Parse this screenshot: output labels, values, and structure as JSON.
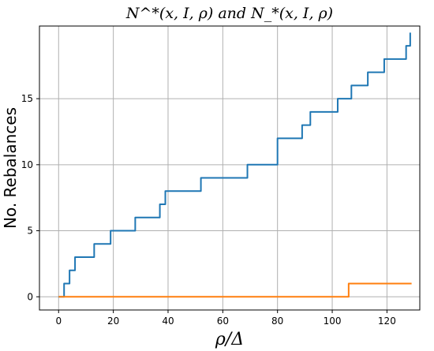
{
  "chart_data": {
    "type": "line",
    "title": "N^*(x, I, ρ) and N_*(x, I, ρ)",
    "xlabel": "ρ/Δ",
    "ylabel": "No. Rebalances",
    "xlim": [
      -7,
      132
    ],
    "ylim": [
      -1,
      20.5
    ],
    "xticks": [
      0,
      20,
      40,
      60,
      80,
      100,
      120
    ],
    "yticks": [
      0,
      5,
      10,
      15
    ],
    "grid": true,
    "series": [
      {
        "color": "#1f77b4",
        "step": true,
        "x": [
          0,
          2,
          2.5,
          4,
          6,
          8,
          13,
          19,
          28,
          37,
          39,
          52,
          69,
          80,
          89,
          92,
          102,
          107,
          113,
          119,
          127,
          128.5
        ],
        "y": [
          0,
          1,
          1,
          2,
          3,
          3,
          4,
          5,
          6,
          7,
          8,
          9,
          10,
          12,
          13,
          14,
          15,
          16,
          17,
          18,
          19,
          20
        ]
      },
      {
        "color": "#ff7f0e",
        "step": true,
        "x": [
          0,
          106,
          129
        ],
        "y": [
          0,
          1,
          1
        ]
      }
    ]
  }
}
